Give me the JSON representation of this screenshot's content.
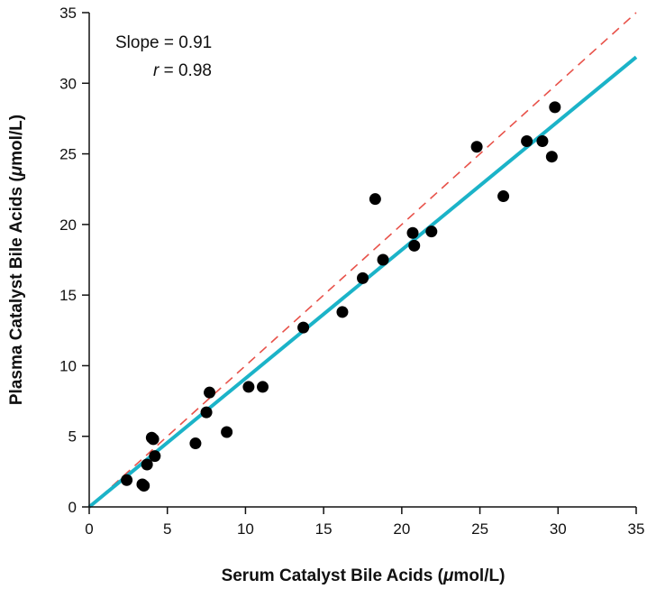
{
  "chart_data": {
    "type": "scatter",
    "xlabel_parts": [
      "Serum Catalyst Bile Acids (",
      "μ",
      "mol/L)"
    ],
    "ylabel_parts": [
      "Plasma Catalyst Bile Acids (",
      "μ",
      "mol/L)"
    ],
    "xlim": [
      0,
      35
    ],
    "ylim": [
      0,
      35
    ],
    "xticks": [
      "0",
      "5",
      "10",
      "15",
      "20",
      "25",
      "30",
      "35"
    ],
    "yticks": [
      "0",
      "5",
      "10",
      "15",
      "20",
      "25",
      "30",
      "35"
    ],
    "grid": false,
    "annotations": {
      "slope_label": "Slope",
      "slope_value": "= 0.91",
      "r_label": "r",
      "r_value": "= 0.98"
    },
    "regression_line": {
      "slope": 0.91,
      "intercept": 0,
      "color": "#1bb3c8",
      "style": "solid"
    },
    "identity_line": {
      "slope": 1,
      "intercept": 0,
      "color": "#e8524a",
      "style": "dashed"
    },
    "marker_color": "#000000",
    "points": [
      {
        "x": 2.4,
        "y": 1.9
      },
      {
        "x": 3.4,
        "y": 1.6
      },
      {
        "x": 3.5,
        "y": 1.5
      },
      {
        "x": 3.7,
        "y": 3.0
      },
      {
        "x": 4.0,
        "y": 4.9
      },
      {
        "x": 4.1,
        "y": 4.8
      },
      {
        "x": 4.2,
        "y": 3.6
      },
      {
        "x": 6.8,
        "y": 4.5
      },
      {
        "x": 7.5,
        "y": 6.7
      },
      {
        "x": 7.7,
        "y": 8.1
      },
      {
        "x": 8.8,
        "y": 5.3
      },
      {
        "x": 10.2,
        "y": 8.5
      },
      {
        "x": 11.1,
        "y": 8.5
      },
      {
        "x": 13.7,
        "y": 12.7
      },
      {
        "x": 16.2,
        "y": 13.8
      },
      {
        "x": 17.5,
        "y": 16.2
      },
      {
        "x": 18.3,
        "y": 21.8
      },
      {
        "x": 18.8,
        "y": 17.5
      },
      {
        "x": 20.7,
        "y": 19.4
      },
      {
        "x": 20.8,
        "y": 18.5
      },
      {
        "x": 21.9,
        "y": 19.5
      },
      {
        "x": 24.8,
        "y": 25.5
      },
      {
        "x": 26.5,
        "y": 22.0
      },
      {
        "x": 28.0,
        "y": 25.9
      },
      {
        "x": 29.0,
        "y": 25.9
      },
      {
        "x": 29.6,
        "y": 24.8
      },
      {
        "x": 29.8,
        "y": 28.3
      }
    ]
  }
}
